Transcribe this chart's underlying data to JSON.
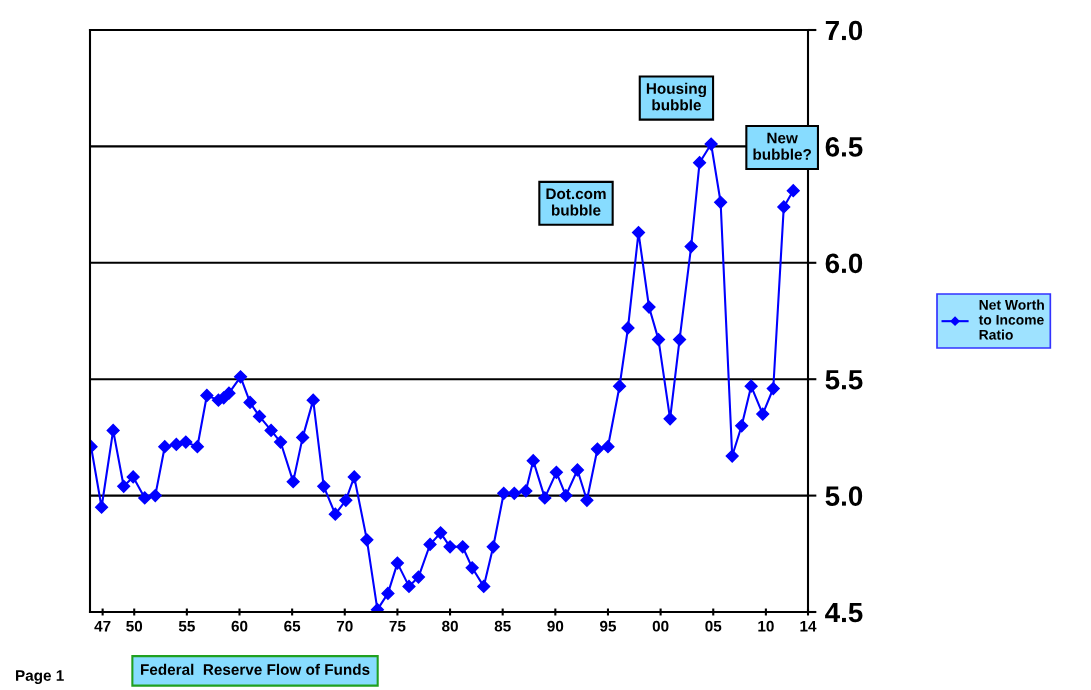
{
  "chart_data": {
    "type": "line",
    "x": [
      1945.9,
      1946.9,
      1948.0,
      1949.0,
      1949.9,
      1951.0,
      1952.0,
      1952.9,
      1954.0,
      1954.9,
      1956.0,
      1956.9,
      1958.0,
      1958.5,
      1959.0,
      1960.1,
      1961.0,
      1961.9,
      1963.0,
      1963.9,
      1965.1,
      1966.0,
      1967.0,
      1968.0,
      1969.1,
      1970.1,
      1970.9,
      1972.1,
      1973.1,
      1974.1,
      1975.0,
      1976.1,
      1977.0,
      1978.1,
      1979.1,
      1980.0,
      1981.2,
      1982.1,
      1983.2,
      1984.1,
      1985.1,
      1986.1,
      1987.2,
      1987.9,
      1989.0,
      1990.1,
      1991.0,
      1992.1,
      1993.0,
      1994.0,
      1995.0,
      1996.1,
      1996.9,
      1997.9,
      1998.9,
      1999.8,
      2000.9,
      2001.8,
      2002.9,
      2003.7,
      2004.8,
      2005.7,
      2006.8,
      2007.7,
      2008.6,
      2009.7,
      2010.7,
      2011.7,
      2012.6
    ],
    "series": [
      {
        "name": "Net Worth to Income Ratio",
        "color": "#0000ff",
        "values": [
          5.21,
          4.95,
          5.28,
          5.04,
          5.08,
          4.99,
          5.0,
          5.21,
          5.22,
          5.23,
          5.21,
          5.43,
          5.41,
          5.42,
          5.44,
          5.51,
          5.4,
          5.34,
          5.28,
          5.23,
          5.06,
          5.25,
          5.41,
          5.04,
          4.92,
          4.98,
          5.08,
          4.81,
          4.51,
          4.58,
          4.71,
          4.61,
          4.65,
          4.79,
          4.84,
          4.78,
          4.78,
          4.69,
          4.61,
          4.78,
          5.01,
          5.01,
          5.02,
          5.15,
          4.99,
          5.1,
          5.0,
          5.11,
          4.98,
          5.2,
          5.21,
          5.47,
          5.72,
          6.13,
          5.81,
          5.67,
          5.33,
          5.67,
          6.07,
          6.43,
          6.51,
          6.26,
          5.17,
          5.3,
          5.47,
          5.35,
          5.46,
          6.24,
          6.31
        ]
      }
    ],
    "xlim": [
      1945.8,
      2014
    ],
    "xticks": [
      {
        "value": 1947,
        "label": "47"
      },
      {
        "value": 1950,
        "label": "50"
      },
      {
        "value": 1955,
        "label": "55"
      },
      {
        "value": 1960,
        "label": "60"
      },
      {
        "value": 1965,
        "label": "65"
      },
      {
        "value": 1970,
        "label": "70"
      },
      {
        "value": 1975,
        "label": "75"
      },
      {
        "value": 1980,
        "label": "80"
      },
      {
        "value": 1985,
        "label": "85"
      },
      {
        "value": 1990,
        "label": "90"
      },
      {
        "value": 1995,
        "label": "95"
      },
      {
        "value": 2000,
        "label": "00"
      },
      {
        "value": 2005,
        "label": "05"
      },
      {
        "value": 2010,
        "label": "10"
      },
      {
        "value": 2014,
        "label": "14"
      }
    ],
    "ylim": [
      4.5,
      7.0
    ],
    "yticks": [
      {
        "value": 4.5,
        "label": "4.5"
      },
      {
        "value": 5.0,
        "label": "5.0"
      },
      {
        "value": 5.5,
        "label": "5.5"
      },
      {
        "value": 6.0,
        "label": "6.0"
      },
      {
        "value": 6.5,
        "label": "6.5"
      },
      {
        "value": 7.0,
        "label": "7.0"
      }
    ],
    "grid": "y",
    "legend": "right",
    "marker": "diamond",
    "line_style": "solid",
    "annotations": [
      {
        "text": "Dot.com\nbubble",
        "x": 1997.9,
        "y": 6.13
      },
      {
        "text": "Housing\nbubble",
        "x": 2004.8,
        "y": 6.51
      },
      {
        "text": "New\nbubble?",
        "x": 2012.6,
        "y": 6.31
      },
      "Federal  Reserve Flow of Funds",
      "Page 1"
    ]
  }
}
